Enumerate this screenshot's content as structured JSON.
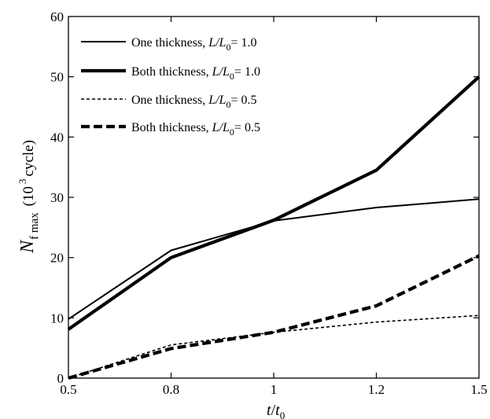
{
  "chart_data": {
    "type": "line",
    "xlabel": {
      "var": "t",
      "slash": "/",
      "var2": "t",
      "sub": "0"
    },
    "ylabel": {
      "main": "N",
      "sub": "f max",
      "unit_open": "(10",
      "unit_sup": "3",
      "unit_close": "cycle)"
    },
    "x_ticks": [
      "0.5",
      "0.8",
      "1",
      "1.2",
      "1.5"
    ],
    "x_values": [
      0.5,
      0.8,
      1.0,
      1.2,
      1.5
    ],
    "y_ticks": [
      "0",
      "10",
      "20",
      "30",
      "40",
      "50",
      "60"
    ],
    "ylim": [
      0,
      60
    ],
    "grid": false,
    "legend_position": "top-left",
    "series": [
      {
        "name_prefix": "One thickness, ",
        "name_var": "L/L",
        "name_sub": "0",
        "name_suffix": "= 1.0",
        "style": "solid-thin",
        "values": [
          9.8,
          21.2,
          26.1,
          28.3,
          29.7
        ]
      },
      {
        "name_prefix": "Both thickness, ",
        "name_var": "L/L",
        "name_sub": "0",
        "name_suffix": "= 1.0",
        "style": "solid-thick",
        "values": [
          8.1,
          20.0,
          26.2,
          34.5,
          50.0
        ]
      },
      {
        "name_prefix": "One thickness, ",
        "name_var": "L/L",
        "name_sub": "0",
        "name_suffix": "= 0.5",
        "style": "dashed-thin",
        "values": [
          0.0,
          5.5,
          7.6,
          9.3,
          10.4
        ]
      },
      {
        "name_prefix": "Both thickness, ",
        "name_var": "L/L",
        "name_sub": "0",
        "name_suffix": "= 0.5",
        "style": "dashed-thick",
        "values": [
          0.0,
          4.9,
          7.6,
          12.0,
          20.3
        ]
      }
    ]
  }
}
